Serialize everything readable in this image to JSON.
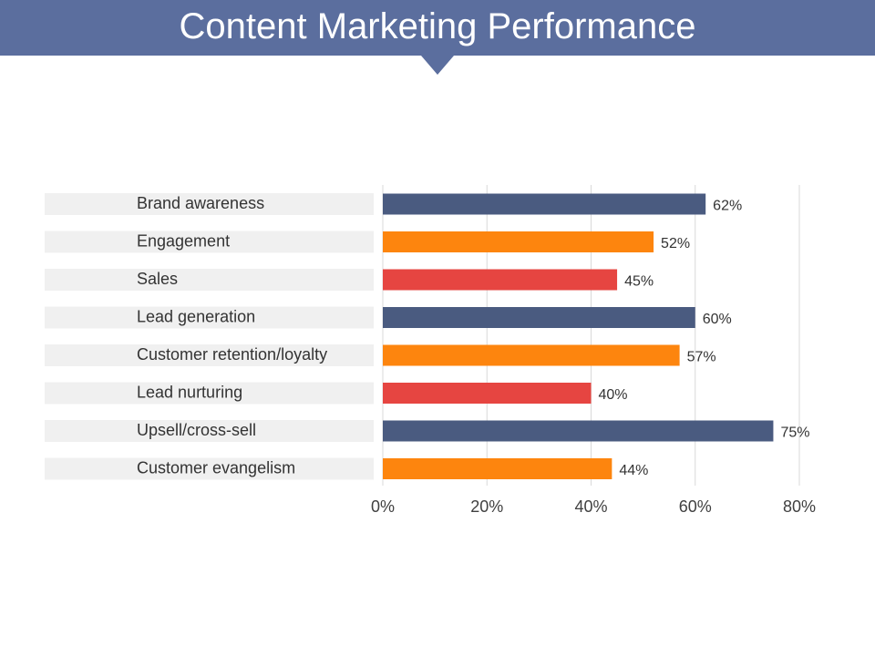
{
  "header": {
    "title": "Content Marketing Performance"
  },
  "colors": {
    "header_bg": "#5b6e9e",
    "navy": "#4a5b80",
    "orange": "#fd850e",
    "red": "#e64541",
    "label_bg": "#f0f0f0",
    "grid": "#d9d9d9",
    "text": "#333333",
    "tick_text": "#404040"
  },
  "chart_data": {
    "type": "bar",
    "orientation": "horizontal",
    "title": "",
    "xlabel": "",
    "ylabel": "",
    "categories": [
      "Brand awareness",
      "Engagement",
      "Sales",
      "Lead generation",
      "Customer retention/loyalty",
      "Lead nurturing",
      "Upsell/cross-sell",
      "Customer evangelism"
    ],
    "values": [
      62,
      52,
      45,
      60,
      57,
      40,
      75,
      44
    ],
    "value_labels": [
      "62%",
      "52%",
      "45%",
      "60%",
      "57%",
      "40%",
      "75%",
      "44%"
    ],
    "bar_colors": [
      "#4a5b80",
      "#fd850e",
      "#e64541",
      "#4a5b80",
      "#fd850e",
      "#e64541",
      "#4a5b80",
      "#fd850e"
    ],
    "xlim": [
      0,
      80
    ],
    "ticks": [
      0,
      20,
      40,
      60,
      80
    ],
    "tick_labels": [
      "0%",
      "20%",
      "40%",
      "60%",
      "80%"
    ],
    "grid": true,
    "legend": "none"
  }
}
